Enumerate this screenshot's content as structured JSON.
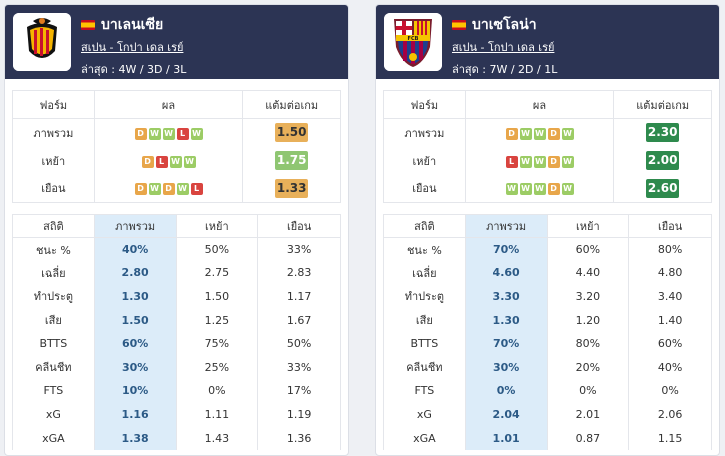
{
  "teams": [
    {
      "name": "บาเลนเซีย",
      "league": "สเปน - โกปา เดล เรย์",
      "recent": "ล่าสุด : 4W / 3D / 3L",
      "form_headers": [
        "ฟอร์ม",
        "ผล",
        "แต้มต่อเกม"
      ],
      "form_rows": [
        {
          "label": "ภาพรวม",
          "results": [
            "D",
            "W",
            "W",
            "L",
            "W"
          ],
          "ppg": "1.50",
          "ppg_color": "#e8b05a"
        },
        {
          "label": "เหย้า",
          "results": [
            "D",
            "L",
            "W",
            "W"
          ],
          "ppg": "1.75",
          "ppg_color": "#8fc672"
        },
        {
          "label": "เยือน",
          "results": [
            "D",
            "W",
            "D",
            "W",
            "L"
          ],
          "ppg": "1.33",
          "ppg_color": "#e8b05a"
        }
      ],
      "stat_headers": [
        "สถิติ",
        "ภาพรวม",
        "เหย้า",
        "เยือน"
      ],
      "stat_rows": [
        {
          "label": "ชนะ %",
          "all": "40%",
          "home": "50%",
          "away": "33%"
        },
        {
          "label": "เฉลี่ย",
          "all": "2.80",
          "home": "2.75",
          "away": "2.83"
        },
        {
          "label": "ทำประตู",
          "all": "1.30",
          "home": "1.50",
          "away": "1.17"
        },
        {
          "label": "เสีย",
          "all": "1.50",
          "home": "1.25",
          "away": "1.67"
        },
        {
          "label": "BTTS",
          "all": "60%",
          "home": "75%",
          "away": "50%"
        },
        {
          "label": "คลีนชีท",
          "all": "30%",
          "home": "25%",
          "away": "33%"
        },
        {
          "label": "FTS",
          "all": "10%",
          "home": "0%",
          "away": "17%"
        },
        {
          "label": "xG",
          "all": "1.16",
          "home": "1.11",
          "away": "1.19"
        },
        {
          "label": "xGA",
          "all": "1.38",
          "home": "1.43",
          "away": "1.36"
        }
      ]
    },
    {
      "name": "บาเซโลน่า",
      "league": "สเปน - โกปา เดล เรย์",
      "recent": "ล่าสุด : 7W / 2D / 1L",
      "form_headers": [
        "ฟอร์ม",
        "ผล",
        "แต้มต่อเกม"
      ],
      "form_rows": [
        {
          "label": "ภาพรวม",
          "results": [
            "D",
            "W",
            "W",
            "D",
            "W"
          ],
          "ppg": "2.30",
          "ppg_color": "#2e8a4d"
        },
        {
          "label": "เหย้า",
          "results": [
            "L",
            "W",
            "W",
            "D",
            "W"
          ],
          "ppg": "2.00",
          "ppg_color": "#2e8a4d"
        },
        {
          "label": "เยือน",
          "results": [
            "W",
            "W",
            "W",
            "D",
            "W"
          ],
          "ppg": "2.60",
          "ppg_color": "#2e8a4d"
        }
      ],
      "stat_headers": [
        "สถิติ",
        "ภาพรวม",
        "เหย้า",
        "เยือน"
      ],
      "stat_rows": [
        {
          "label": "ชนะ %",
          "all": "70%",
          "home": "60%",
          "away": "80%"
        },
        {
          "label": "เฉลี่ย",
          "all": "4.60",
          "home": "4.40",
          "away": "4.80"
        },
        {
          "label": "ทำประตู",
          "all": "3.30",
          "home": "3.20",
          "away": "3.40"
        },
        {
          "label": "เสีย",
          "all": "1.30",
          "home": "1.20",
          "away": "1.40"
        },
        {
          "label": "BTTS",
          "all": "70%",
          "home": "80%",
          "away": "60%"
        },
        {
          "label": "คลีนชีท",
          "all": "30%",
          "home": "20%",
          "away": "40%"
        },
        {
          "label": "FTS",
          "all": "0%",
          "home": "0%",
          "away": "0%"
        },
        {
          "label": "xG",
          "all": "2.04",
          "home": "2.01",
          "away": "2.06"
        },
        {
          "label": "xGA",
          "all": "1.01",
          "home": "0.87",
          "away": "1.15"
        }
      ]
    }
  ],
  "colors": {
    "header_bg": "#2c3454",
    "win": "#9ccc65",
    "draw": "#e8a64a",
    "loss": "#d9443f",
    "highlight_col": "#dcecf9"
  },
  "icons": [
    "valencia-crest-icon",
    "barcelona-crest-icon",
    "spain-flag-icon"
  ]
}
